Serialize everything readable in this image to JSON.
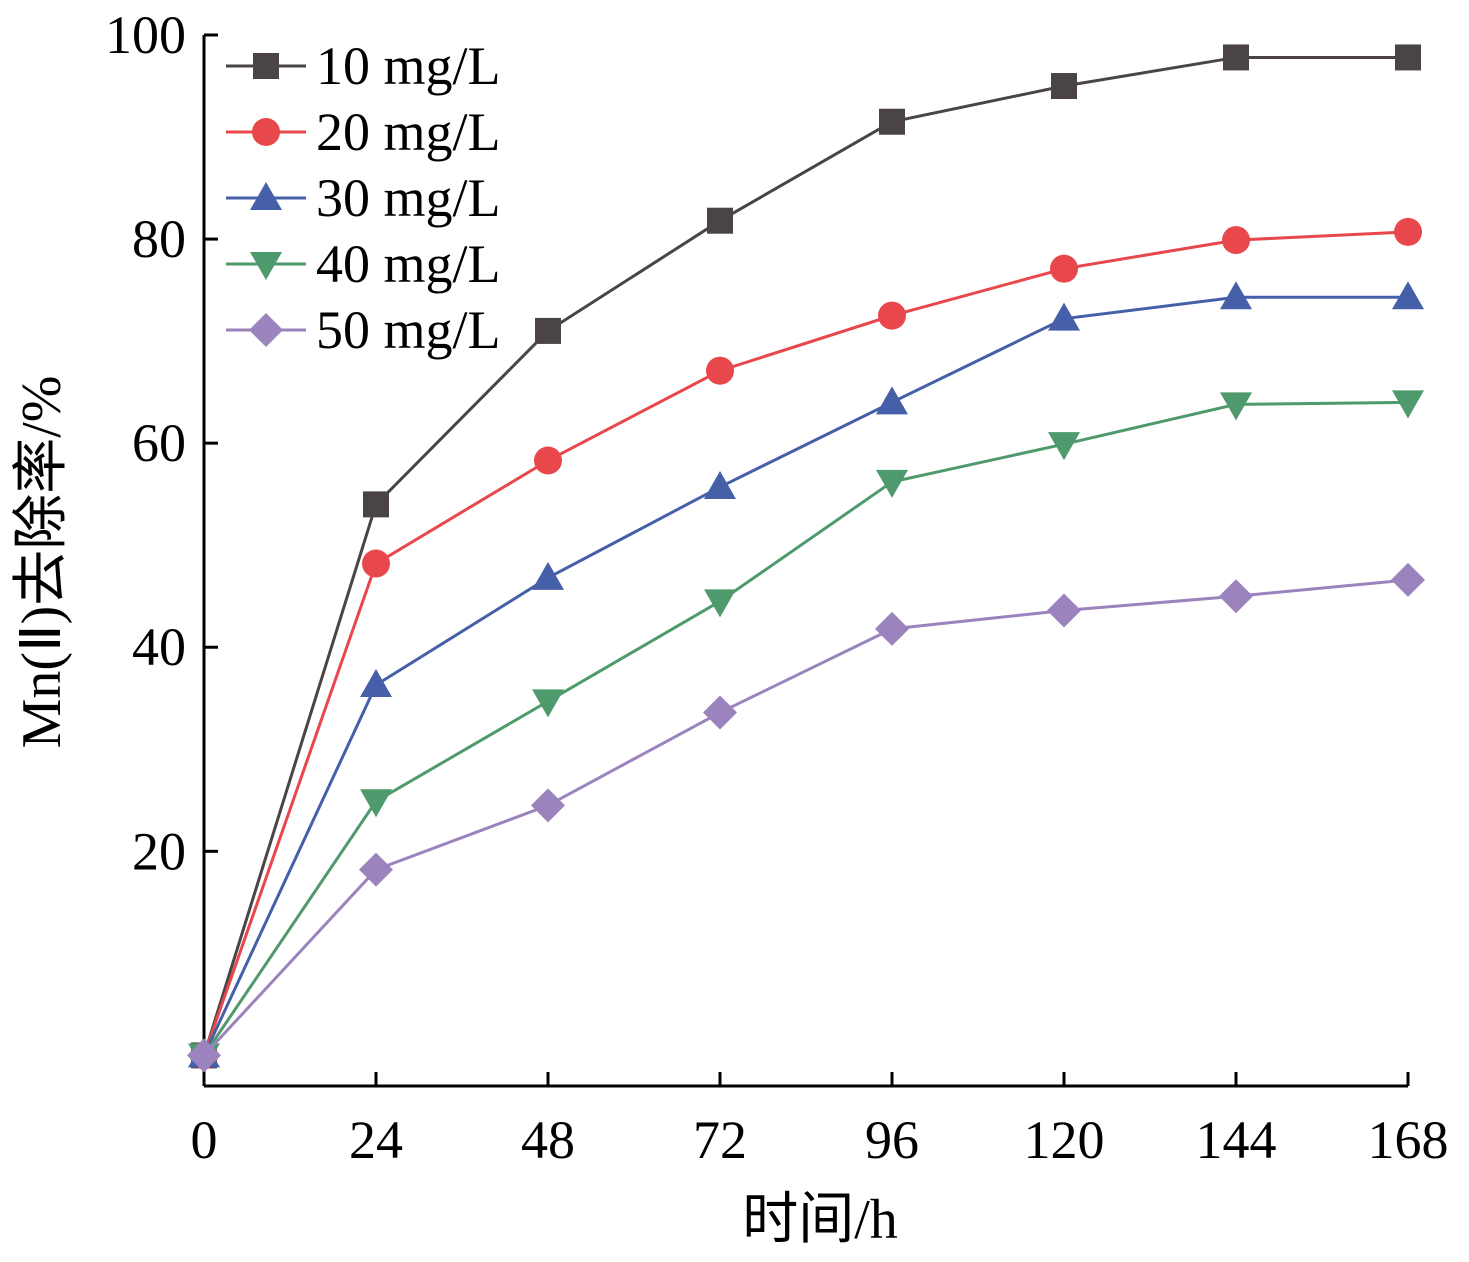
{
  "chart_data": {
    "type": "line",
    "xlabel": "时间/h",
    "ylabel": "Mn(Ⅱ)去除率/%",
    "xlim": [
      0,
      168
    ],
    "ylim": [
      -3,
      100
    ],
    "x_ticks": [
      0,
      24,
      48,
      72,
      96,
      120,
      144,
      168
    ],
    "y_ticks": [
      20,
      40,
      60,
      80,
      100
    ],
    "grid": false,
    "legend_position": "top-left",
    "x": [
      0,
      24,
      48,
      72,
      96,
      120,
      144,
      168
    ],
    "series": [
      {
        "name": "10 mg/L",
        "color": "#4a4544",
        "marker": "square",
        "values": [
          0,
          54,
          71,
          81.8,
          91.5,
          95,
          97.8,
          97.8
        ]
      },
      {
        "name": "20 mg/L",
        "color": "#e8474b",
        "marker": "circle",
        "values": [
          0,
          48.2,
          58.3,
          67.1,
          72.5,
          77.1,
          79.9,
          80.7
        ]
      },
      {
        "name": "30 mg/L",
        "color": "#4560a8",
        "marker": "triangle-up",
        "values": [
          0,
          36.3,
          46.8,
          55.7,
          64,
          72.2,
          74.3,
          74.3
        ]
      },
      {
        "name": "40 mg/L",
        "color": "#4f9a6c",
        "marker": "triangle-down",
        "values": [
          0,
          24.9,
          34.7,
          44.5,
          56.2,
          59.9,
          63.8,
          64
        ]
      },
      {
        "name": "50 mg/L",
        "color": "#9b83bd",
        "marker": "diamond",
        "values": [
          0,
          18.2,
          24.5,
          33.6,
          41.8,
          43.6,
          45,
          46.6
        ]
      }
    ]
  }
}
